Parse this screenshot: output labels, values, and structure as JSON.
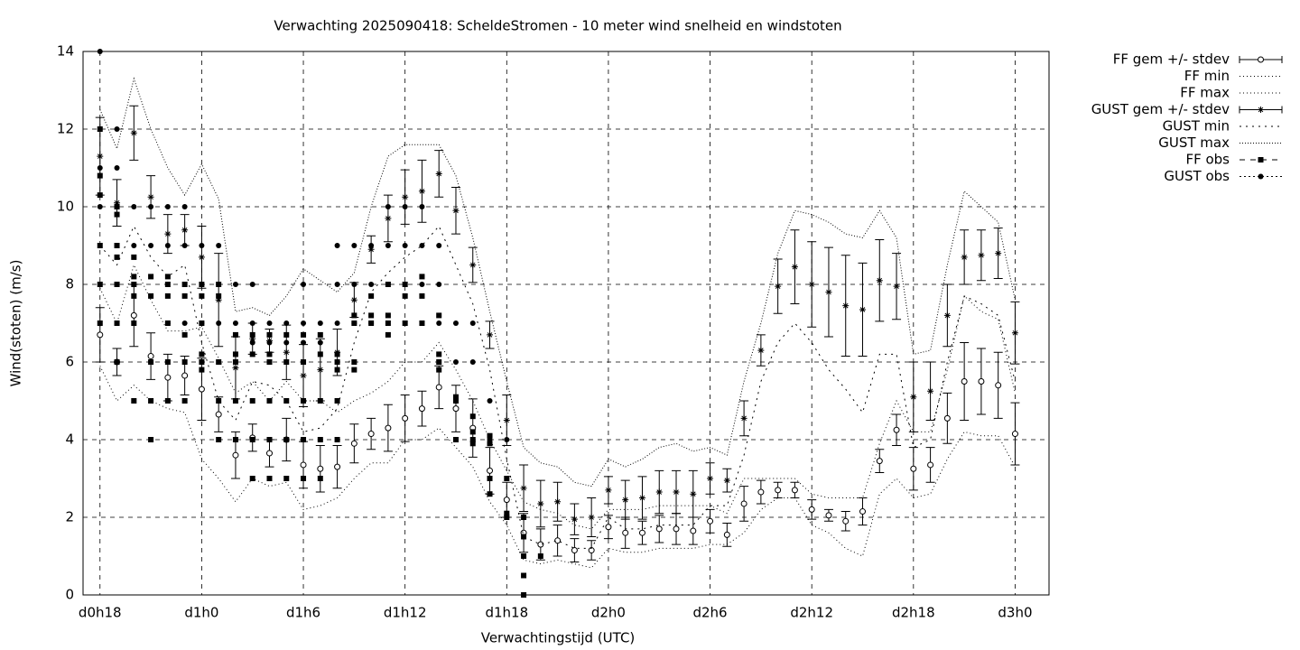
{
  "chart_data": {
    "type": "errorbar",
    "title": "Verwachting 2025090418: ScheldeStromen - 10 meter wind snelheid en windstoten",
    "x_label": "Verwachtingstijd (UTC)",
    "y_label": "Wind(stoten) (m/s)",
    "xlim": [
      17,
      74
    ],
    "ylim": [
      0,
      14
    ],
    "xticks": [
      {
        "value": 18,
        "label": "d0h18"
      },
      {
        "value": 24,
        "label": "d1h0"
      },
      {
        "value": 30,
        "label": "d1h6"
      },
      {
        "value": 36,
        "label": "d1h12"
      },
      {
        "value": 42,
        "label": "d1h18"
      },
      {
        "value": 48,
        "label": "d2h0"
      },
      {
        "value": 54,
        "label": "d2h6"
      },
      {
        "value": 60,
        "label": "d2h12"
      },
      {
        "value": 66,
        "label": "d2h18"
      },
      {
        "value": 72,
        "label": "d3h0"
      }
    ],
    "yticks": [
      0,
      2,
      4,
      6,
      8,
      10,
      12,
      14
    ],
    "grid": true,
    "legend": "outside-top-right",
    "x": [
      18,
      19,
      20,
      21,
      22,
      23,
      24,
      25,
      26,
      27,
      28,
      29,
      30,
      31,
      32,
      33,
      34,
      35,
      36,
      37,
      38,
      39,
      40,
      41,
      42,
      43,
      44,
      45,
      46,
      47,
      48,
      49,
      50,
      51,
      52,
      53,
      54,
      55,
      56,
      57,
      58,
      59,
      60,
      61,
      62,
      63,
      64,
      65,
      66,
      67,
      68,
      69,
      70,
      71,
      72
    ],
    "series": [
      {
        "name": "FF gem +/- stdev",
        "style": "errorbars",
        "marker": "circle-open",
        "color": "#000000",
        "values": [
          6.7,
          6.0,
          7.2,
          6.15,
          5.6,
          5.65,
          5.3,
          4.65,
          3.6,
          4.05,
          3.65,
          4.0,
          3.35,
          3.25,
          3.3,
          3.9,
          4.15,
          4.3,
          4.55,
          4.8,
          5.35,
          4.8,
          4.3,
          3.2,
          2.45,
          1.6,
          1.3,
          1.4,
          1.15,
          1.15,
          1.75,
          1.6,
          1.6,
          1.7,
          1.7,
          1.65,
          1.9,
          1.55,
          2.35,
          2.65,
          2.7,
          2.7,
          2.2,
          2.05,
          1.9,
          2.15,
          3.45,
          4.25,
          3.25,
          3.35,
          4.55,
          5.5,
          5.5,
          5.4,
          4.15
        ],
        "errors": [
          0.7,
          0.35,
          0.8,
          0.6,
          0.6,
          0.5,
          0.8,
          0.45,
          0.6,
          0.35,
          0.35,
          0.55,
          0.6,
          0.6,
          0.55,
          0.5,
          0.4,
          0.6,
          0.6,
          0.45,
          0.55,
          0.6,
          0.75,
          0.6,
          0.45,
          0.5,
          0.4,
          0.4,
          0.3,
          0.25,
          0.3,
          0.4,
          0.3,
          0.35,
          0.4,
          0.35,
          0.3,
          0.3,
          0.45,
          0.3,
          0.2,
          0.2,
          0.25,
          0.15,
          0.25,
          0.35,
          0.3,
          0.4,
          0.55,
          0.45,
          0.65,
          1.0,
          0.85,
          0.85,
          0.8
        ]
      },
      {
        "name": "FF min",
        "style": "line",
        "dash": "1,3",
        "color": "#000000",
        "values": [
          5.9,
          5.0,
          5.4,
          5.0,
          4.8,
          4.7,
          3.5,
          3.0,
          2.4,
          3.0,
          2.8,
          2.9,
          2.2,
          2.3,
          2.5,
          3.0,
          3.4,
          3.4,
          4.0,
          4.0,
          4.3,
          3.8,
          3.3,
          2.4,
          1.8,
          0.9,
          0.8,
          0.9,
          0.8,
          0.7,
          1.2,
          1.1,
          1.1,
          1.2,
          1.2,
          1.2,
          1.3,
          1.3,
          1.6,
          2.2,
          2.5,
          2.5,
          1.8,
          1.6,
          1.2,
          1.0,
          2.6,
          3.0,
          2.5,
          2.6,
          3.5,
          4.2,
          4.1,
          4.1,
          3.3
        ]
      },
      {
        "name": "FF max",
        "style": "line",
        "dash": "1,3",
        "color": "#000000",
        "values": [
          7.9,
          7.0,
          8.5,
          7.6,
          6.8,
          6.8,
          6.9,
          6.1,
          5.2,
          5.5,
          5.0,
          5.5,
          5.0,
          5.0,
          4.7,
          5.0,
          5.2,
          5.5,
          6.0,
          6.0,
          6.5,
          5.8,
          5.0,
          4.0,
          3.2,
          2.4,
          2.2,
          2.1,
          1.8,
          1.7,
          2.2,
          2.2,
          2.2,
          2.3,
          2.3,
          2.3,
          2.3,
          2.1,
          3.0,
          3.0,
          3.0,
          3.0,
          2.6,
          2.5,
          2.5,
          2.5,
          3.9,
          5.0,
          4.2,
          4.2,
          5.8,
          7.7,
          7.3,
          7.1,
          5.2
        ]
      },
      {
        "name": "GUST gem +/- stdev",
        "style": "errorbars",
        "marker": "star",
        "color": "#000000",
        "values": [
          11.3,
          10.1,
          11.9,
          10.25,
          9.3,
          9.4,
          8.7,
          7.6,
          5.85,
          6.6,
          6.55,
          6.25,
          5.65,
          5.8,
          6.25,
          7.6,
          8.9,
          9.7,
          10.25,
          10.4,
          10.85,
          9.9,
          8.5,
          6.7,
          4.5,
          2.75,
          2.35,
          2.4,
          1.95,
          2.0,
          2.7,
          2.45,
          2.5,
          2.65,
          2.65,
          2.6,
          3.0,
          2.95,
          4.55,
          6.3,
          7.95,
          8.45,
          8.0,
          7.8,
          7.45,
          7.35,
          8.1,
          7.95,
          5.1,
          5.25,
          7.2,
          8.7,
          8.75,
          8.8,
          6.75
        ],
        "errors": [
          1.0,
          0.6,
          0.7,
          0.55,
          0.5,
          0.4,
          0.8,
          1.2,
          0.8,
          0.4,
          0.3,
          0.7,
          0.8,
          0.8,
          0.6,
          0.45,
          0.35,
          0.6,
          0.7,
          0.8,
          0.6,
          0.6,
          0.45,
          0.35,
          0.65,
          0.6,
          0.6,
          0.5,
          0.4,
          0.5,
          0.35,
          0.5,
          0.55,
          0.55,
          0.55,
          0.6,
          0.4,
          0.3,
          0.45,
          0.4,
          0.7,
          0.95,
          1.1,
          1.15,
          1.3,
          1.2,
          1.05,
          0.85,
          0.9,
          0.75,
          0.8,
          0.7,
          0.65,
          0.65,
          0.8
        ]
      },
      {
        "name": "GUST min",
        "style": "line",
        "dash": "2,5",
        "color": "#000000",
        "values": [
          9.0,
          8.5,
          9.5,
          8.7,
          8.2,
          8.5,
          6.5,
          5.0,
          4.5,
          5.5,
          5.4,
          5.0,
          4.2,
          4.3,
          4.8,
          6.5,
          7.8,
          8.3,
          8.7,
          9.0,
          9.5,
          8.5,
          7.5,
          5.8,
          3.5,
          1.5,
          1.3,
          1.4,
          1.2,
          1.2,
          2.0,
          1.7,
          1.7,
          1.8,
          1.8,
          1.8,
          2.3,
          2.3,
          3.6,
          5.5,
          6.5,
          7.0,
          6.5,
          5.8,
          5.3,
          4.7,
          6.2,
          6.2,
          3.8,
          4.0,
          6.0,
          7.7,
          7.5,
          7.2,
          5.5
        ]
      },
      {
        "name": "GUST max",
        "style": "line",
        "dash": "1,2",
        "color": "#000000",
        "values": [
          12.5,
          11.5,
          13.3,
          12.0,
          11.0,
          10.3,
          11.1,
          10.2,
          7.3,
          7.4,
          7.2,
          7.7,
          8.4,
          8.1,
          7.8,
          8.3,
          10.0,
          11.3,
          11.6,
          11.6,
          11.6,
          10.8,
          9.2,
          7.3,
          5.5,
          3.8,
          3.4,
          3.3,
          2.9,
          2.8,
          3.5,
          3.3,
          3.5,
          3.8,
          3.9,
          3.7,
          3.8,
          3.6,
          5.5,
          7.0,
          8.8,
          9.9,
          9.8,
          9.6,
          9.3,
          9.2,
          9.9,
          9.2,
          6.2,
          6.3,
          8.5,
          10.4,
          10.0,
          9.6,
          7.6
        ]
      },
      {
        "name": "FF obs",
        "style": "points",
        "marker": "square",
        "legend_dash": "6,6",
        "color": "#000000",
        "x": [
          18,
          18,
          18,
          18,
          18,
          18,
          19,
          19,
          19,
          19,
          19,
          19,
          19,
          20,
          20,
          20,
          20,
          20,
          20,
          21,
          21,
          21,
          21,
          21,
          22,
          22,
          22,
          22,
          22,
          22,
          23,
          23,
          23,
          23,
          23,
          24,
          24,
          24,
          24,
          24,
          24,
          25,
          25,
          25,
          25,
          25,
          26,
          26,
          26,
          26,
          26,
          27,
          27,
          27,
          27,
          27,
          28,
          28,
          28,
          28,
          28,
          28,
          29,
          29,
          29,
          29,
          29,
          30,
          30,
          30,
          30,
          30,
          31,
          31,
          31,
          31,
          31,
          32,
          32,
          32,
          32,
          32,
          33,
          33,
          33,
          33,
          34,
          34,
          34,
          35,
          35,
          35,
          35,
          36,
          36,
          36,
          37,
          37,
          37,
          38,
          38,
          38,
          38,
          39,
          39,
          39,
          40,
          40,
          40,
          40,
          41,
          41,
          41,
          41,
          42,
          42,
          42,
          43,
          43,
          43,
          43,
          43,
          44
        ],
        "values": [
          12,
          10.8,
          10.3,
          9,
          8,
          7,
          10,
          9.8,
          9,
          8.7,
          8,
          7,
          6,
          8.7,
          8.2,
          8,
          7.7,
          7,
          5,
          8.2,
          7.7,
          6,
          5,
          4,
          8.2,
          8,
          7.7,
          7,
          6,
          5,
          8,
          7.7,
          6.7,
          6,
          5,
          8,
          7.7,
          7,
          6.2,
          6,
          5.8,
          8,
          7.7,
          6,
          5,
          4,
          6.7,
          6.2,
          6,
          5,
          4,
          6.7,
          6.2,
          5,
          4,
          3,
          6.7,
          6.2,
          6,
          5,
          4,
          3,
          6.7,
          6,
          5,
          4,
          3,
          6.7,
          6,
          5,
          4,
          3,
          6.7,
          6.2,
          5,
          4,
          3,
          6.2,
          6,
          5.8,
          5,
          4,
          7.2,
          7,
          6,
          5.8,
          7.7,
          7.2,
          7,
          8,
          7.2,
          7,
          6.7,
          8,
          7.7,
          7,
          8.2,
          7.7,
          7,
          7.2,
          6.2,
          6,
          5.8,
          5.1,
          5,
          4,
          4.6,
          4.2,
          4.0,
          3.9,
          4.1,
          3.9,
          3.0,
          2.6,
          3,
          2.1,
          2.0,
          2,
          1.5,
          1.0,
          0.5,
          0,
          1.0
        ]
      },
      {
        "name": "GUST obs",
        "style": "points",
        "marker": "circle",
        "legend_dash": "2,3",
        "color": "#000000",
        "x": [
          18,
          18,
          18,
          19,
          19,
          19,
          19,
          19,
          19,
          20,
          20,
          20,
          21,
          21,
          21,
          22,
          22,
          22,
          23,
          23,
          23,
          24,
          24,
          24,
          25,
          25,
          25,
          26,
          26,
          26,
          27,
          27,
          27,
          28,
          28,
          28,
          29,
          29,
          30,
          30,
          30,
          31,
          31,
          31,
          32,
          32,
          32,
          33,
          33,
          33,
          34,
          34,
          34,
          35,
          35,
          35,
          36,
          36,
          37,
          37,
          37,
          38,
          38,
          38,
          39,
          39,
          40,
          40,
          41,
          41,
          42
        ],
        "values": [
          14,
          11,
          10,
          12,
          11,
          10,
          9,
          8,
          6,
          10,
          9,
          8,
          10,
          9,
          6,
          10,
          9,
          7,
          10,
          9,
          7,
          9,
          7,
          6,
          9,
          8,
          7,
          8,
          7,
          6,
          8,
          7,
          6.5,
          7,
          6.5,
          5,
          7,
          6.5,
          8,
          7,
          6.5,
          7,
          6.5,
          4,
          9,
          8,
          7,
          9,
          8,
          7,
          9,
          8,
          7,
          10,
          9,
          8,
          10,
          9,
          10,
          9,
          8,
          9,
          8,
          7,
          7,
          6,
          7,
          6,
          5,
          4,
          4
        ]
      }
    ]
  }
}
